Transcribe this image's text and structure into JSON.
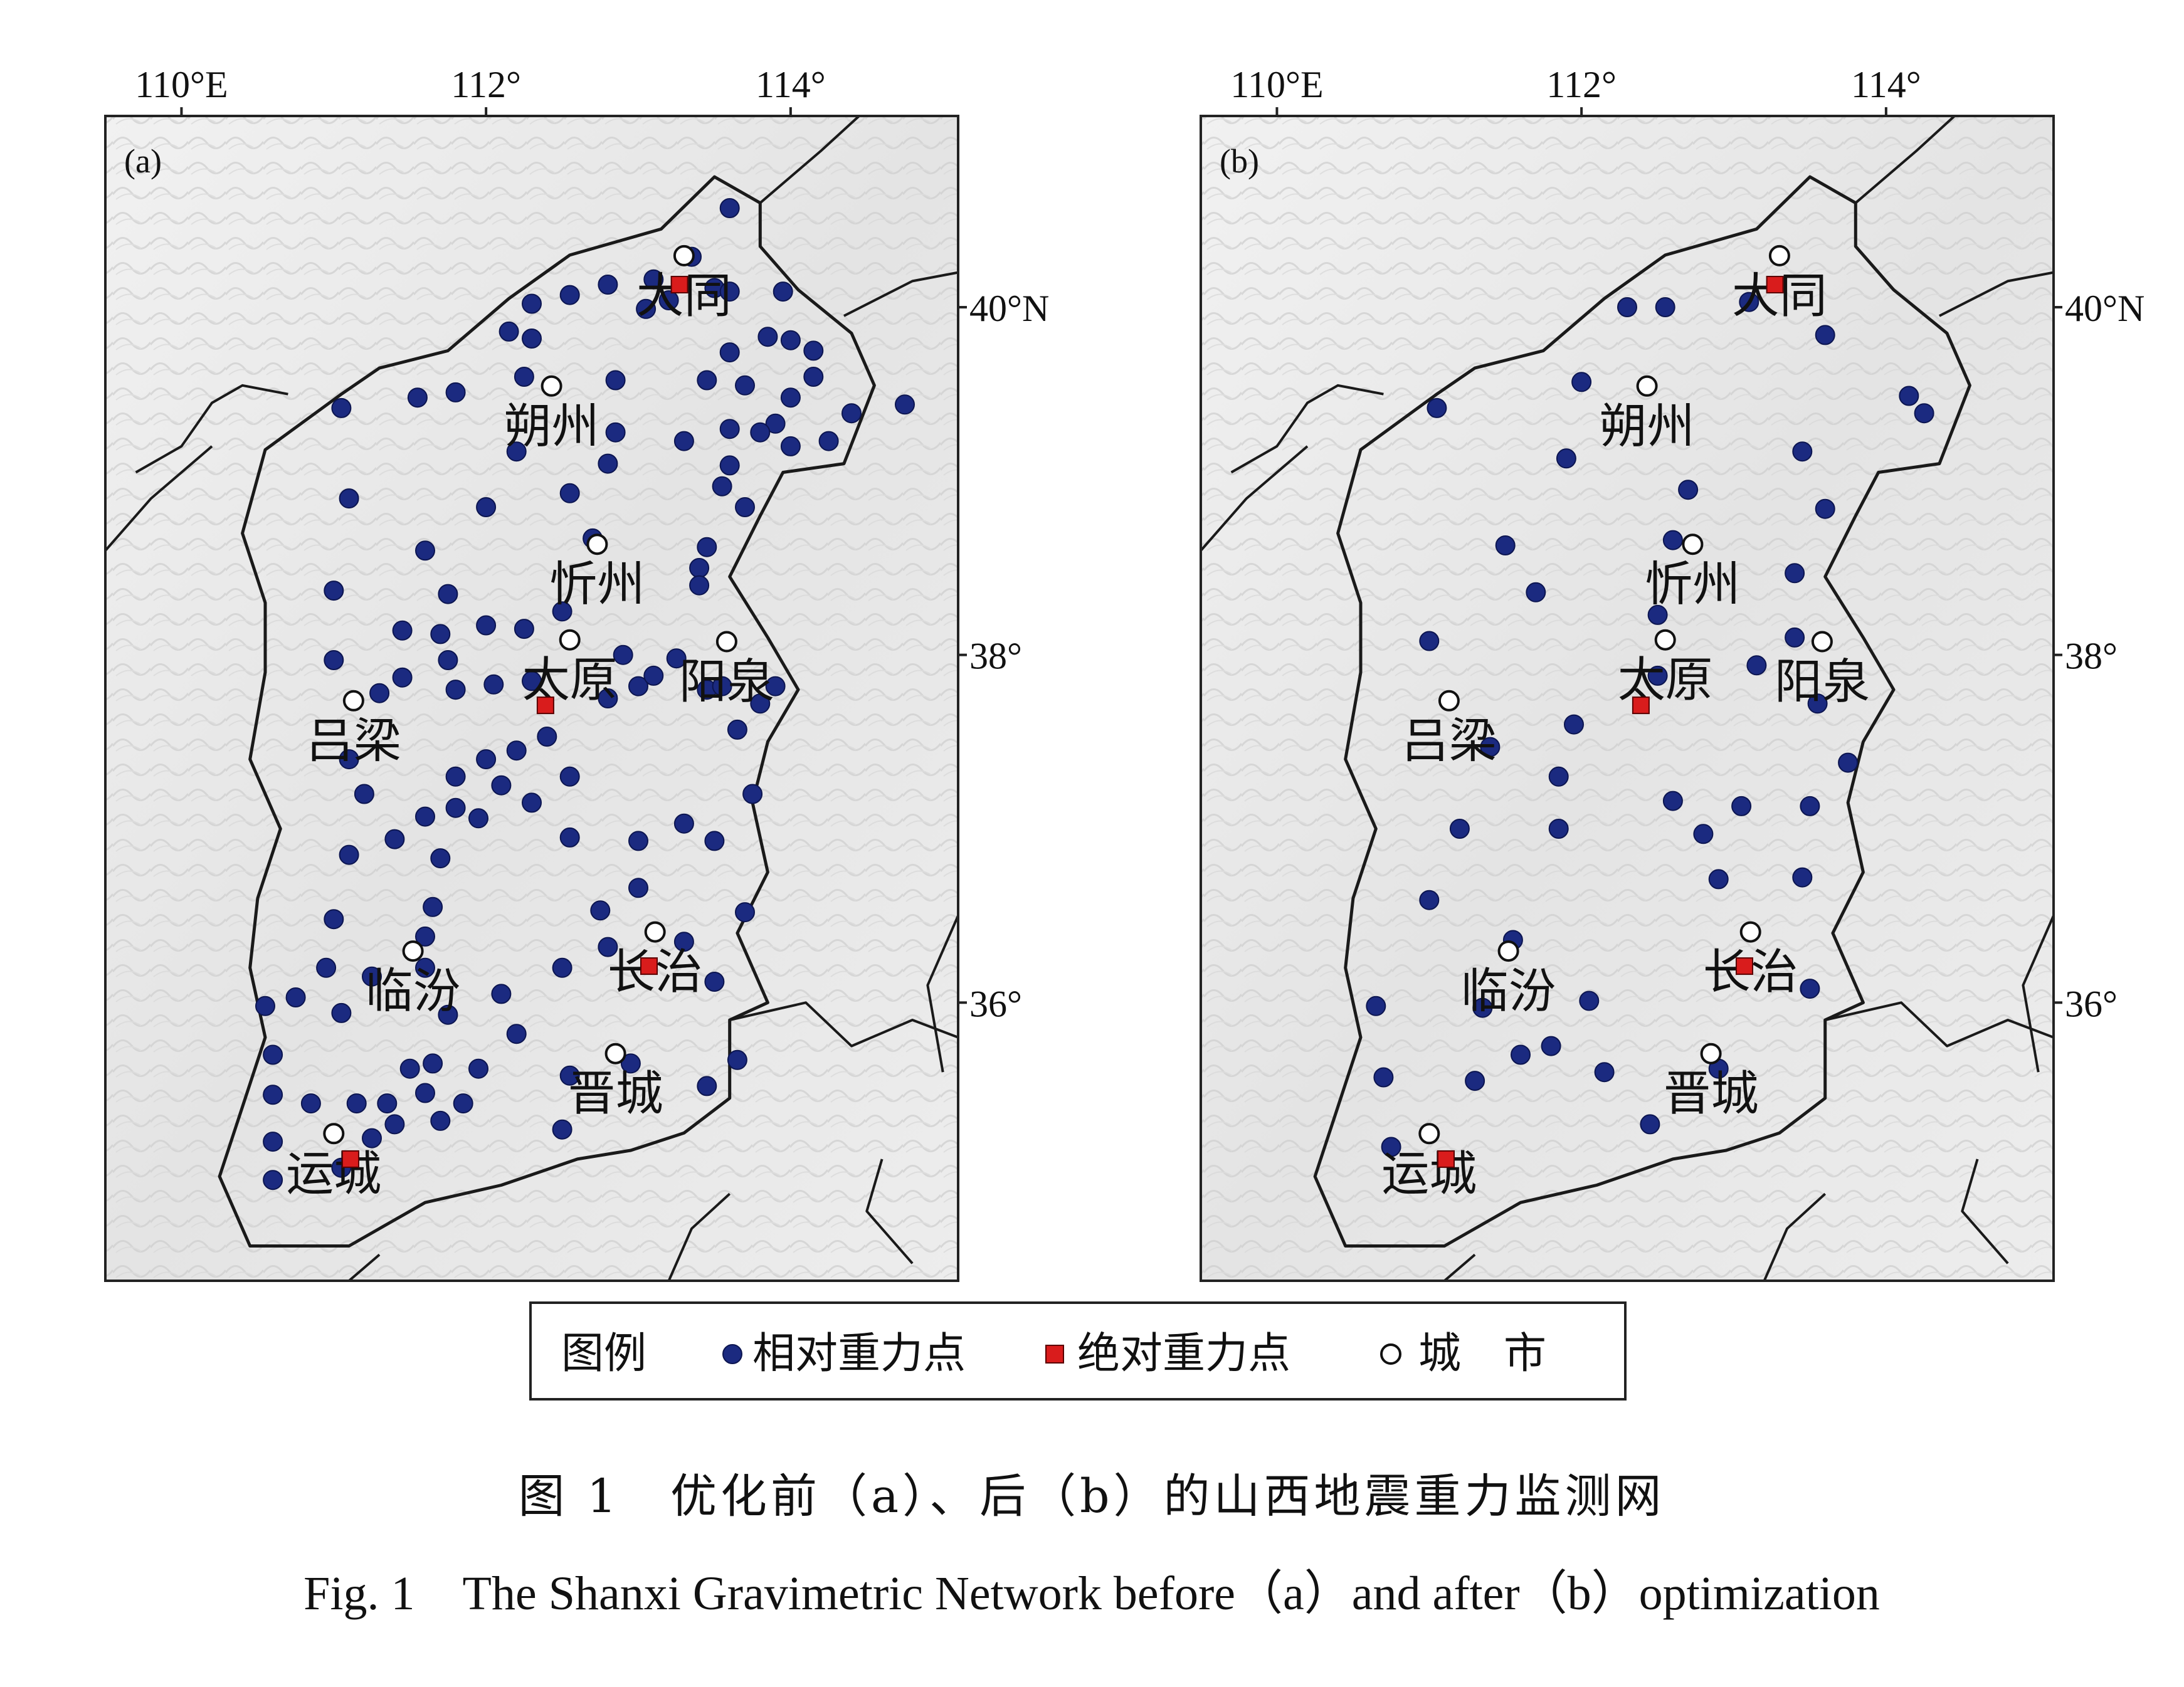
{
  "panels": [
    {
      "label": "(a)",
      "lon_ticks": [
        {
          "label": "110°E",
          "lon": 110
        },
        {
          "label": "112°",
          "lon": 112
        },
        {
          "label": "114°",
          "lon": 114
        }
      ],
      "lat_ticks": [
        {
          "label": "40°N",
          "lat": 40
        },
        {
          "label": "38°",
          "lat": 38
        },
        {
          "label": "36°",
          "lat": 36
        }
      ],
      "show_lat_labels": true
    },
    {
      "label": "(b)",
      "lon_ticks": [
        {
          "label": "110°E",
          "lon": 110
        },
        {
          "label": "112°",
          "lon": 112
        },
        {
          "label": "114°",
          "lon": 114
        }
      ],
      "lat_ticks": [
        {
          "label": "40°N",
          "lat": 40
        },
        {
          "label": "38°",
          "lat": 38
        },
        {
          "label": "36°",
          "lat": 36
        }
      ],
      "show_lat_labels": true
    }
  ],
  "cities": [
    {
      "name": "大同",
      "lon": 113.3,
      "lat": 40.08
    },
    {
      "name": "朔州",
      "lon": 112.43,
      "lat": 39.33
    },
    {
      "name": "忻州",
      "lon": 112.73,
      "lat": 38.42
    },
    {
      "name": "太原",
      "lon": 112.55,
      "lat": 37.87
    },
    {
      "name": "阳泉",
      "lon": 113.58,
      "lat": 37.86
    },
    {
      "name": "吕梁",
      "lon": 111.13,
      "lat": 37.52
    },
    {
      "name": "临汾",
      "lon": 111.52,
      "lat": 36.08
    },
    {
      "name": "长治",
      "lon": 113.11,
      "lat": 36.19
    },
    {
      "name": "晋城",
      "lon": 112.85,
      "lat": 35.49
    },
    {
      "name": "运城",
      "lon": 111.0,
      "lat": 35.03
    }
  ],
  "absolute_points": {
    "a": [
      [
        113.27,
        40.13
      ],
      [
        112.39,
        37.71
      ],
      [
        113.07,
        36.21
      ],
      [
        111.11,
        35.1
      ]
    ],
    "b": [
      [
        113.27,
        40.13
      ],
      [
        112.39,
        37.71
      ],
      [
        113.07,
        36.21
      ],
      [
        111.11,
        35.1
      ]
    ]
  },
  "relative_points": {
    "a": [
      [
        113.6,
        40.57
      ],
      [
        113.35,
        40.29
      ],
      [
        113.1,
        40.16
      ],
      [
        112.8,
        40.13
      ],
      [
        112.55,
        40.07
      ],
      [
        112.3,
        40.02
      ],
      [
        113.5,
        40.11
      ],
      [
        113.6,
        40.09
      ],
      [
        113.95,
        40.09
      ],
      [
        113.05,
        39.99
      ],
      [
        113.2,
        40.04
      ],
      [
        112.15,
        39.86
      ],
      [
        112.3,
        39.82
      ],
      [
        113.85,
        39.83
      ],
      [
        114.0,
        39.81
      ],
      [
        114.15,
        39.75
      ],
      [
        113.6,
        39.74
      ],
      [
        112.85,
        39.58
      ],
      [
        112.25,
        39.6
      ],
      [
        114.15,
        39.6
      ],
      [
        113.45,
        39.58
      ],
      [
        113.7,
        39.55
      ],
      [
        114.0,
        39.48
      ],
      [
        111.55,
        39.48
      ],
      [
        111.8,
        39.51
      ],
      [
        111.05,
        39.42
      ],
      [
        114.75,
        39.44
      ],
      [
        114.4,
        39.39
      ],
      [
        113.9,
        39.33
      ],
      [
        113.6,
        39.3
      ],
      [
        113.8,
        39.28
      ],
      [
        114.25,
        39.23
      ],
      [
        114.0,
        39.2
      ],
      [
        112.85,
        39.28
      ],
      [
        113.3,
        39.23
      ],
      [
        112.2,
        39.17
      ],
      [
        112.8,
        39.1
      ],
      [
        113.6,
        39.09
      ],
      [
        113.55,
        38.97
      ],
      [
        111.1,
        38.9
      ],
      [
        112.0,
        38.85
      ],
      [
        112.55,
        38.93
      ],
      [
        113.7,
        38.85
      ],
      [
        112.7,
        38.67
      ],
      [
        111.6,
        38.6
      ],
      [
        113.45,
        38.62
      ],
      [
        113.4,
        38.5
      ],
      [
        111.0,
        38.37
      ],
      [
        111.75,
        38.35
      ],
      [
        113.4,
        38.4
      ],
      [
        112.5,
        38.25
      ],
      [
        112.25,
        38.15
      ],
      [
        112.0,
        38.17
      ],
      [
        111.7,
        38.12
      ],
      [
        111.45,
        38.14
      ],
      [
        112.9,
        38.0
      ],
      [
        113.25,
        37.98
      ],
      [
        111.75,
        37.97
      ],
      [
        111.0,
        37.97
      ],
      [
        111.45,
        37.87
      ],
      [
        111.8,
        37.8
      ],
      [
        112.05,
        37.83
      ],
      [
        113.0,
        37.82
      ],
      [
        113.1,
        37.88
      ],
      [
        112.3,
        37.85
      ],
      [
        111.3,
        37.78
      ],
      [
        112.8,
        37.75
      ],
      [
        113.45,
        37.8
      ],
      [
        113.9,
        37.82
      ],
      [
        113.55,
        37.82
      ],
      [
        113.8,
        37.72
      ],
      [
        113.65,
        37.57
      ],
      [
        112.4,
        37.53
      ],
      [
        112.2,
        37.45
      ],
      [
        112.0,
        37.4
      ],
      [
        111.8,
        37.3
      ],
      [
        111.1,
        37.4
      ],
      [
        111.2,
        37.2
      ],
      [
        111.6,
        37.07
      ],
      [
        112.1,
        37.25
      ],
      [
        111.8,
        37.12
      ],
      [
        111.95,
        37.06
      ],
      [
        112.3,
        37.15
      ],
      [
        112.55,
        37.3
      ],
      [
        113.3,
        37.03
      ],
      [
        113.75,
        37.2
      ],
      [
        112.55,
        36.95
      ],
      [
        113.0,
        36.93
      ],
      [
        113.5,
        36.93
      ],
      [
        111.4,
        36.94
      ],
      [
        111.1,
        36.85
      ],
      [
        111.7,
        36.83
      ],
      [
        113.0,
        36.66
      ],
      [
        111.65,
        36.55
      ],
      [
        112.75,
        36.53
      ],
      [
        111.0,
        36.48
      ],
      [
        113.7,
        36.52
      ],
      [
        112.8,
        36.32
      ],
      [
        113.3,
        36.35
      ],
      [
        111.6,
        36.38
      ],
      [
        112.5,
        36.2
      ],
      [
        110.95,
        36.2
      ],
      [
        111.6,
        36.2
      ],
      [
        111.25,
        36.15
      ],
      [
        112.1,
        36.05
      ],
      [
        113.5,
        36.12
      ],
      [
        110.55,
        35.98
      ],
      [
        110.75,
        36.03
      ],
      [
        111.05,
        35.94
      ],
      [
        111.75,
        35.93
      ],
      [
        112.2,
        35.82
      ],
      [
        110.6,
        35.7
      ],
      [
        111.65,
        35.65
      ],
      [
        111.5,
        35.62
      ],
      [
        111.95,
        35.62
      ],
      [
        113.65,
        35.67
      ],
      [
        112.55,
        35.58
      ],
      [
        112.95,
        35.65
      ],
      [
        113.45,
        35.52
      ],
      [
        110.6,
        35.47
      ],
      [
        110.85,
        35.42
      ],
      [
        111.15,
        35.42
      ],
      [
        111.35,
        35.42
      ],
      [
        111.6,
        35.48
      ],
      [
        111.85,
        35.42
      ],
      [
        111.4,
        35.3
      ],
      [
        111.7,
        35.32
      ],
      [
        110.6,
        35.2
      ],
      [
        112.5,
        35.27
      ],
      [
        111.25,
        35.22
      ],
      [
        110.6,
        34.98
      ],
      [
        111.05,
        35.05
      ]
    ],
    "b": [
      [
        112.3,
        40.0
      ],
      [
        112.55,
        40.0
      ],
      [
        113.1,
        40.03
      ],
      [
        113.6,
        39.84
      ],
      [
        112.0,
        39.57
      ],
      [
        111.05,
        39.42
      ],
      [
        114.15,
        39.49
      ],
      [
        114.25,
        39.39
      ],
      [
        113.45,
        39.17
      ],
      [
        111.9,
        39.13
      ],
      [
        112.7,
        38.95
      ],
      [
        113.6,
        38.84
      ],
      [
        112.6,
        38.66
      ],
      [
        111.5,
        38.63
      ],
      [
        113.4,
        38.47
      ],
      [
        111.7,
        38.36
      ],
      [
        112.5,
        38.23
      ],
      [
        111.0,
        38.08
      ],
      [
        113.4,
        38.1
      ],
      [
        113.15,
        37.94
      ],
      [
        112.5,
        37.88
      ],
      [
        113.55,
        37.72
      ],
      [
        111.95,
        37.6
      ],
      [
        111.4,
        37.47
      ],
      [
        111.85,
        37.3
      ],
      [
        112.6,
        37.16
      ],
      [
        113.05,
        37.13
      ],
      [
        113.5,
        37.13
      ],
      [
        113.75,
        37.38
      ],
      [
        111.2,
        37.0
      ],
      [
        111.85,
        37.0
      ],
      [
        112.8,
        36.97
      ],
      [
        112.9,
        36.71
      ],
      [
        113.45,
        36.72
      ],
      [
        111.0,
        36.59
      ],
      [
        111.55,
        36.36
      ],
      [
        110.65,
        35.98
      ],
      [
        111.35,
        35.97
      ],
      [
        112.05,
        36.01
      ],
      [
        113.5,
        36.08
      ],
      [
        111.6,
        35.7
      ],
      [
        111.8,
        35.75
      ],
      [
        112.9,
        35.62
      ],
      [
        112.15,
        35.6
      ],
      [
        111.3,
        35.55
      ],
      [
        110.7,
        35.57
      ],
      [
        112.45,
        35.3
      ],
      [
        110.75,
        35.17
      ]
    ]
  },
  "legend": {
    "title": "图例",
    "items": [
      {
        "shape": "circle-filled",
        "label": "相对重力点",
        "color": "#1b2a80"
      },
      {
        "shape": "square",
        "label": "绝对重力点",
        "color": "#d91c1c"
      },
      {
        "shape": "circle-open",
        "label": "城　市",
        "color": "#ffffff"
      }
    ]
  },
  "caption": {
    "chinese": "图 1　优化前（a）、后（b）的山西地震重力监测网",
    "english": "Fig. 1　The Shanxi Gravimetric Network before（a）and after（b）optimization"
  }
}
